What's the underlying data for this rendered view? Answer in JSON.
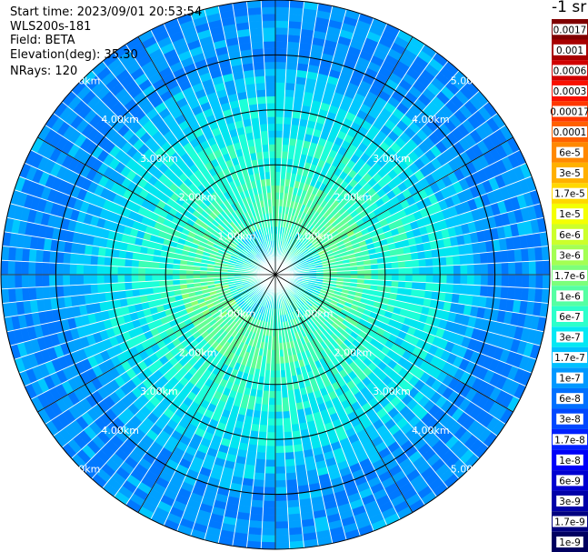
{
  "header": {
    "start_time": "Start time: 2023/09/01 20:53:54",
    "instrument": "WLS200s-181",
    "field": "Field: BETA",
    "elevation": "Elevation(deg): 35.30",
    "nrays": "NRays: 120"
  },
  "colorbar": {
    "title": "-1 sr",
    "labels": [
      "0.0017",
      "0.001",
      "0.0006",
      "0.0003",
      "0.00017",
      "0.0001",
      "6e-5",
      "3e-5",
      "1.7e-5",
      "1e-5",
      "6e-6",
      "3e-6",
      "1.7e-6",
      "1e-6",
      "6e-7",
      "3e-7",
      "1.7e-7",
      "1e-7",
      "6e-8",
      "3e-8",
      "1.7e-8",
      "1e-8",
      "6e-9",
      "3e-9",
      "1.7e-9",
      "1e-9"
    ],
    "colors": [
      "#800000",
      "#a80000",
      "#d00000",
      "#f81000",
      "#ff3800",
      "#ff6000",
      "#ff8800",
      "#ffb000",
      "#ffd800",
      "#f4ff03",
      "#ccff2b",
      "#a4ff53",
      "#7cff7b",
      "#54ffa3",
      "#2cffcb",
      "#04e8f3",
      "#00c0ff",
      "#0098ff",
      "#0070ff",
      "#0048ff",
      "#0020ff",
      "#0000f8",
      "#0000d0",
      "#0000a8",
      "#000080",
      "#000060"
    ]
  },
  "chart_data": {
    "type": "heatmap",
    "projection": "polar (PPI scan)",
    "field": "BETA",
    "n_rays": 120,
    "max_range_km": 5.0,
    "radial_spoke_angles_deg": [
      0,
      30,
      60,
      90,
      120,
      150,
      180,
      210,
      240,
      270,
      300,
      330
    ],
    "range_rings": [
      {
        "km": 1.0,
        "label": "1.00km"
      },
      {
        "km": 2.0,
        "label": "2.00km"
      },
      {
        "km": 3.0,
        "label": "3.00km"
      },
      {
        "km": 4.0,
        "label": "4.00km"
      },
      {
        "km": 5.0,
        "label": "5.00km"
      }
    ],
    "ring_label_angles_deg": [
      45,
      135,
      225,
      315
    ],
    "beta_profile": [
      {
        "range_km": 0.5,
        "dominant_class": "1.7e-7 to 3e-7 (cyan-green)"
      },
      {
        "range_km": 1.2,
        "dominant_class": "1e-6 to 1.7e-6 (green)"
      },
      {
        "range_km": 2.0,
        "dominant_class": "3e-7 to 6e-7 (cyan-green)"
      },
      {
        "range_km": 3.0,
        "dominant_class": "1.7e-7 to 3e-7 (cyan)"
      },
      {
        "range_km": 4.0,
        "dominant_class": "3e-8 to 6e-8 (blue)"
      },
      {
        "range_km": 5.0,
        "dominant_class": "1e-8 to 3e-8 (blue)"
      }
    ],
    "colorbar_unit": "-1 sr"
  }
}
